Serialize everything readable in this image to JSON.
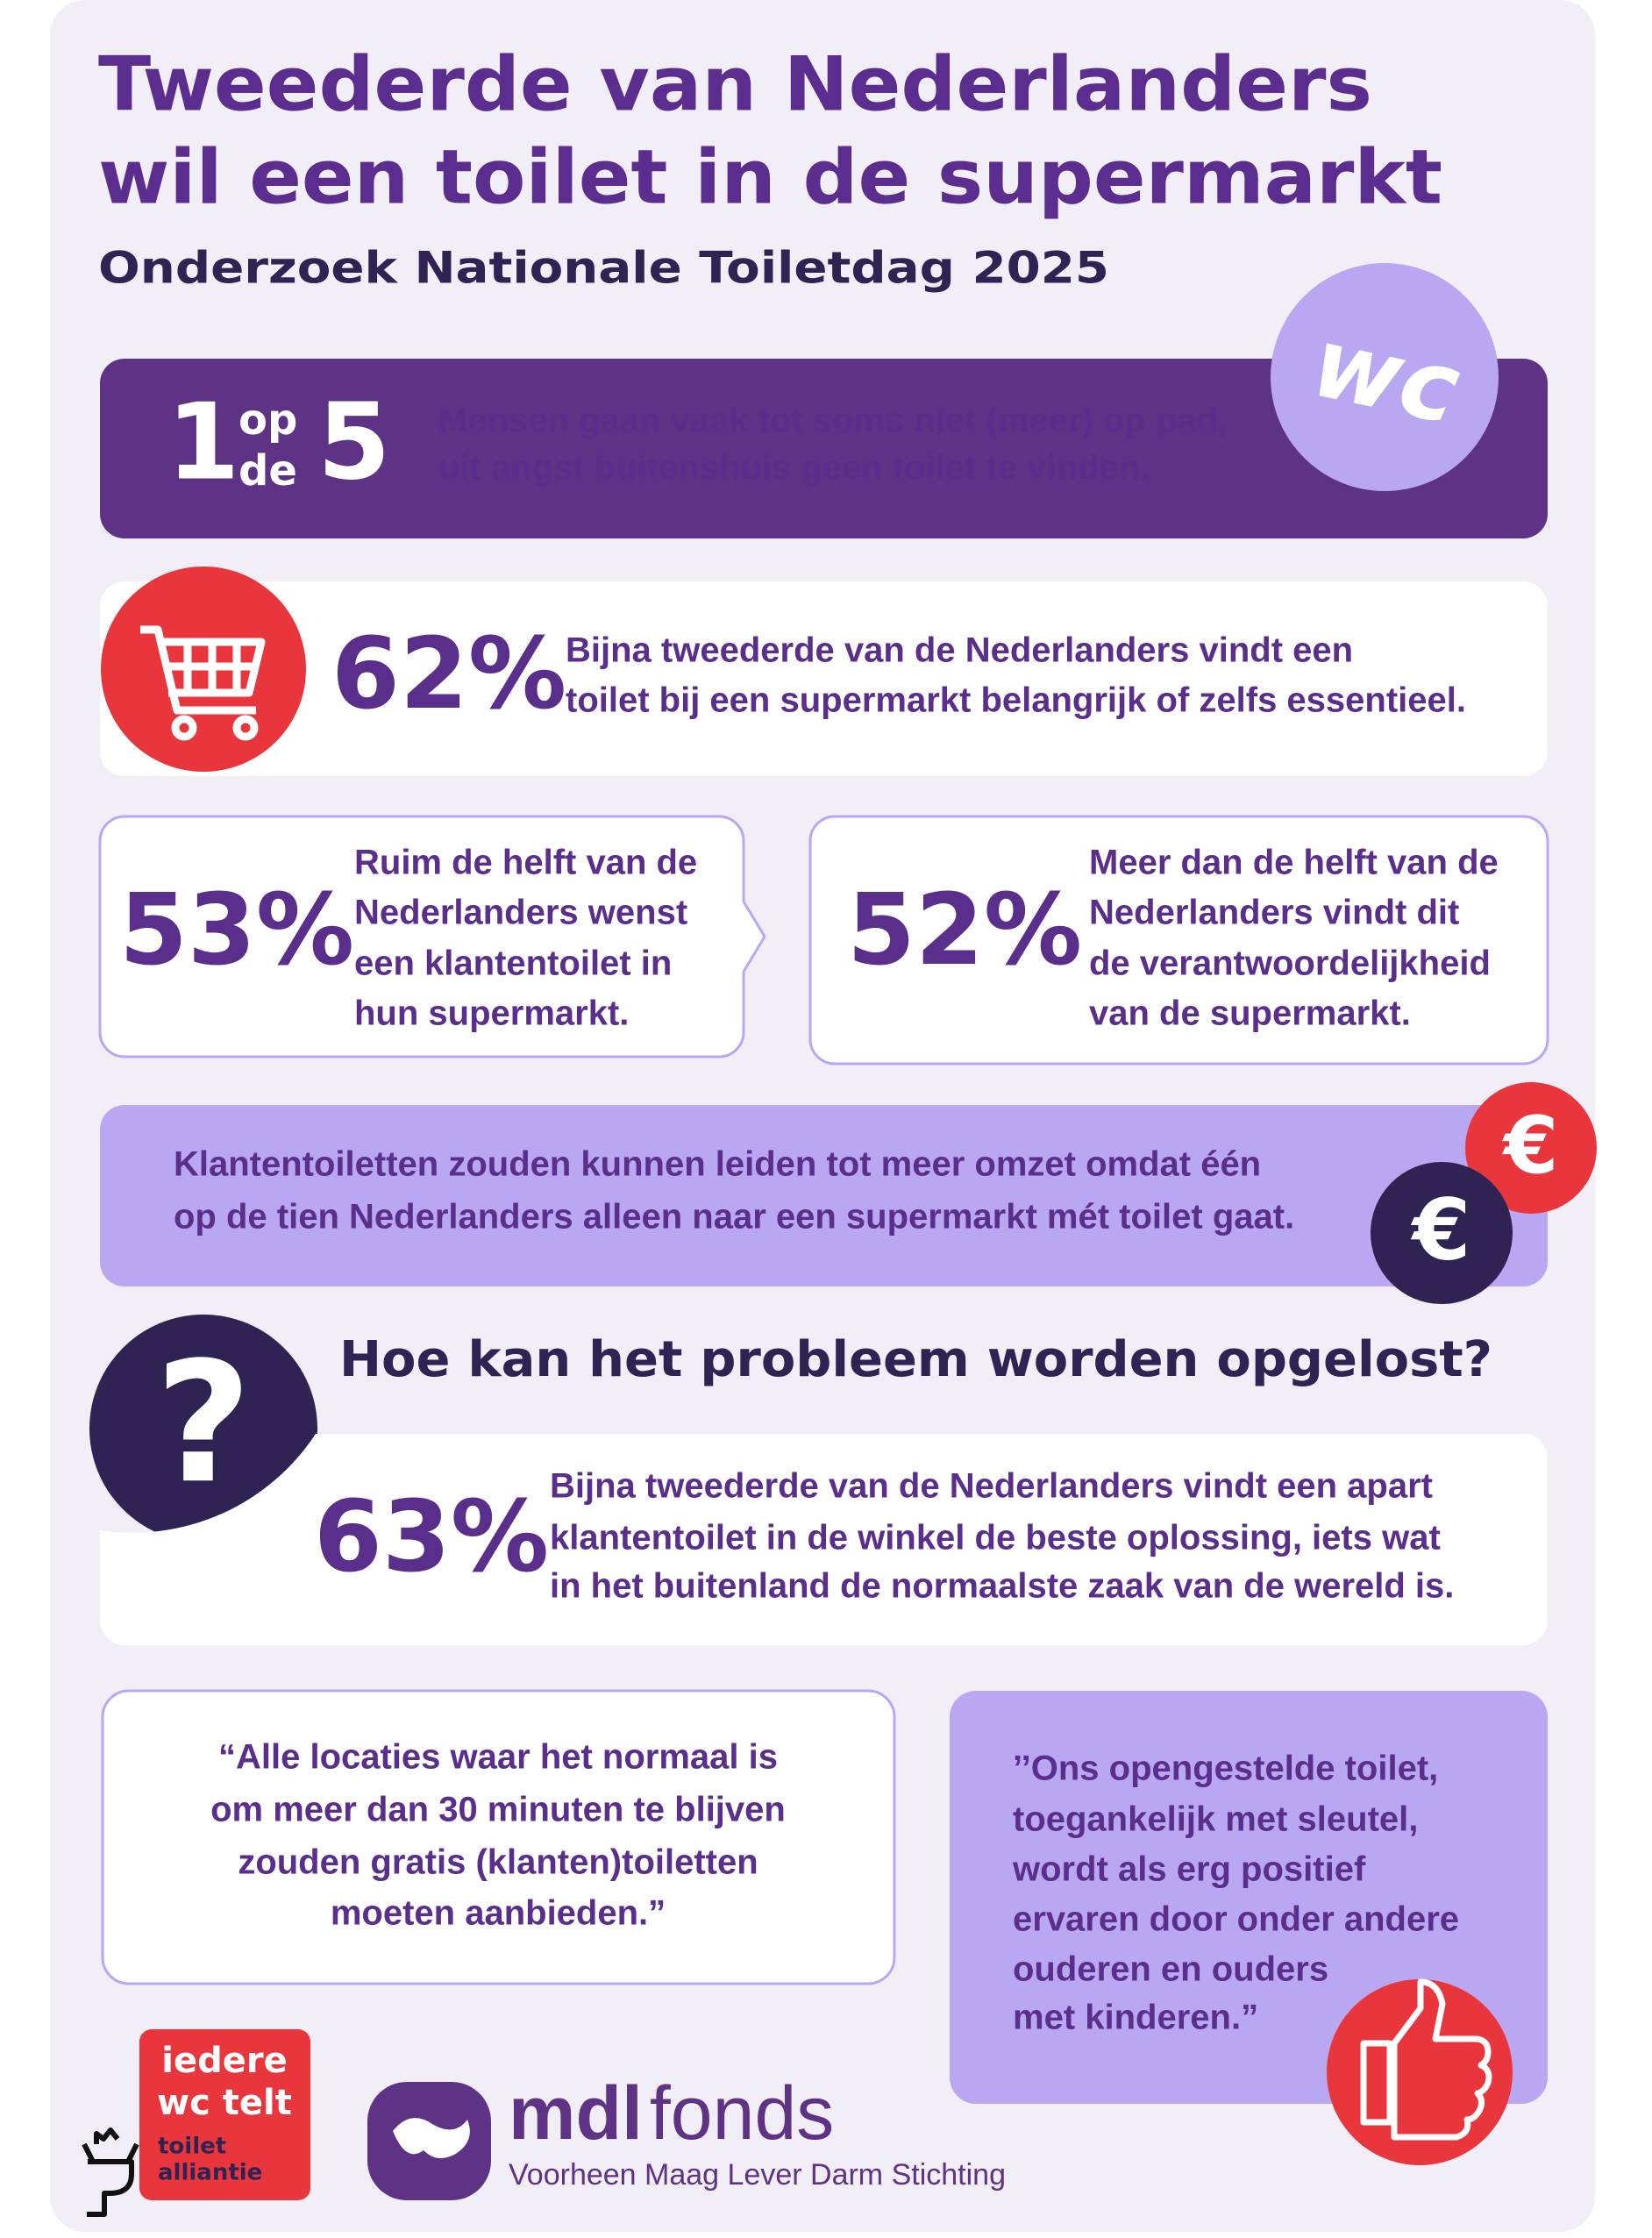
{
  "header": {
    "title_lines": [
      "Tweederde van Nederlanders",
      "wil een toilet in de supermarkt"
    ],
    "subtitle": "Onderzoek Nationale Toiletdag 2025"
  },
  "badge": "wc",
  "fact_1": {
    "number_a": "1",
    "word_a": "op",
    "word_b": "de",
    "number_b": "5",
    "text_lines": [
      "Mensen gaan vaak tot soms niet (meer) op pad,",
      "uit angst buitenshuis geen toilet te vinden."
    ]
  },
  "fact_2": {
    "percent": "62%",
    "text_lines": [
      "Bijna tweederde van de Nederlanders vindt een",
      "toilet bij een supermarkt belangrijk of zelfs essentieel."
    ]
  },
  "fact_3": {
    "percent": "53%",
    "text_lines": [
      "Ruim de helft van de",
      "Nederlanders wenst",
      "een klantentoilet in",
      "hun supermarkt."
    ]
  },
  "fact_4": {
    "percent": "52%",
    "text_lines": [
      "Meer dan de helft van de",
      "Nederlanders vindt dit",
      "de verantwoordelijkheid",
      "van de supermarkt."
    ]
  },
  "fact_5": {
    "text_lines": [
      "Klantentoiletten zouden kunnen leiden tot meer omzet omdat één",
      "op de tien Nederlanders alleen naar een supermarkt mét toilet gaat."
    ]
  },
  "question": {
    "symbol": "?",
    "heading": "Hoe kan het probleem worden opgelost?"
  },
  "fact_6": {
    "percent": "63%",
    "text_lines": [
      "Bijna tweederde van de Nederlanders vindt een apart",
      "klantentoilet in de winkel de beste oplossing, iets wat",
      "in het buitenland de normaalste zaak van de wereld is."
    ]
  },
  "quote_1": {
    "text_lines": [
      "“Alle locaties waar het normaal is",
      "om meer dan 30 minuten te blijven",
      "zouden gratis (klanten)toiletten",
      "moeten aanbieden.”"
    ]
  },
  "quote_2": {
    "text_lines": [
      "’’Ons opengestelde toilet,",
      "toegankelijk met sleutel,",
      "wordt als erg positief",
      "ervaren door onder andere",
      "ouderen en ouders",
      "met kinderen.”"
    ]
  },
  "logos": {
    "alliance_lines": [
      "iedere",
      "wc telt"
    ],
    "alliance_sub_lines": [
      "toilet",
      "alliantie"
    ],
    "fonds_a": "mdl",
    "fonds_b": "fonds",
    "fonds_tagline": "Voorheen Maag Lever Darm Stichting"
  }
}
